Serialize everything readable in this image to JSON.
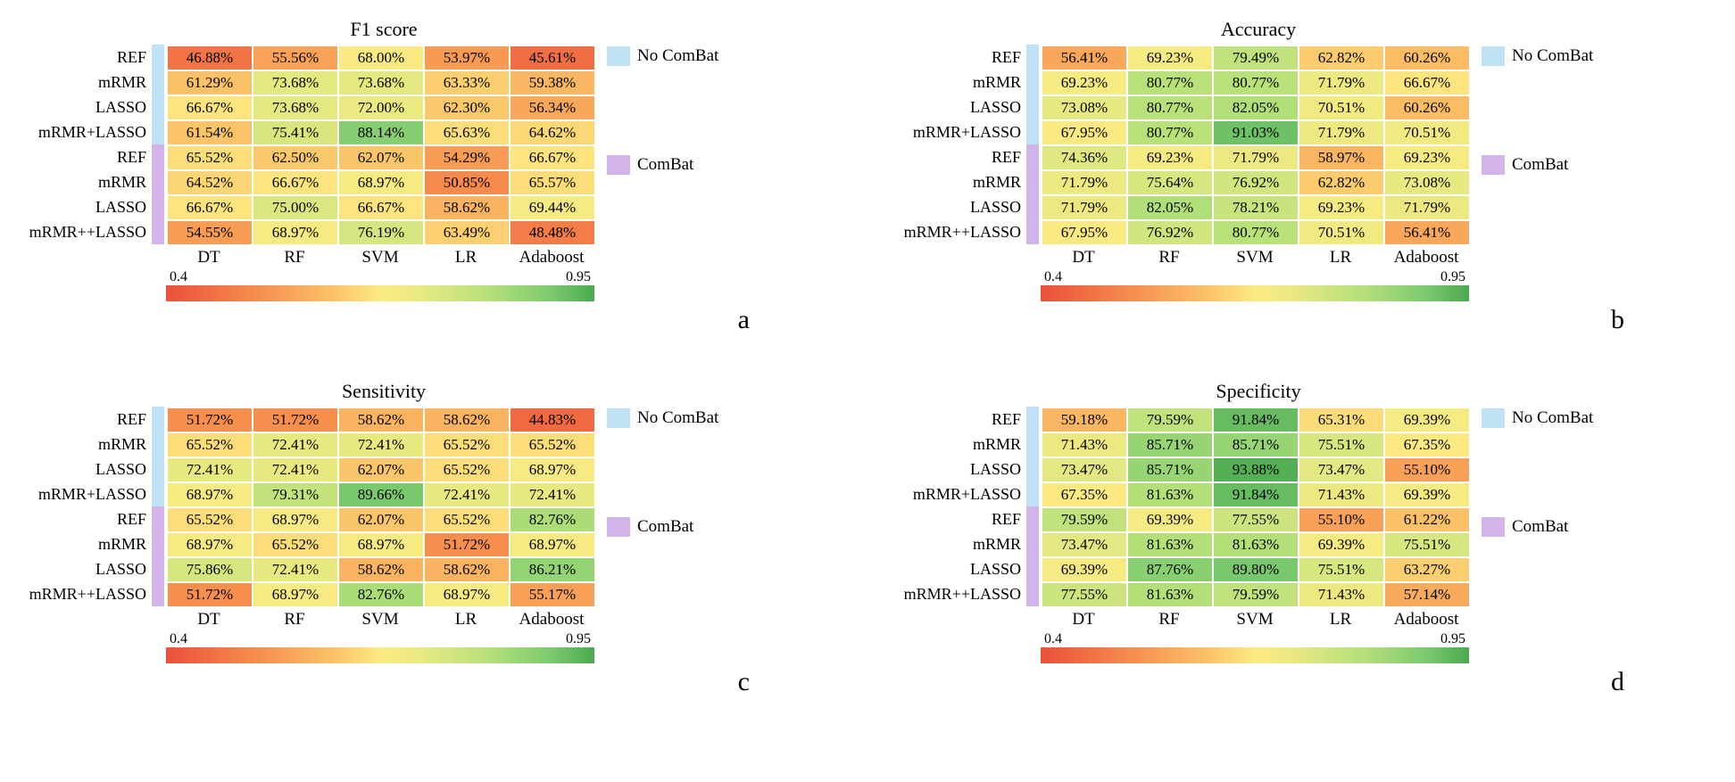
{
  "colorScale": {
    "min": 0.4,
    "max": 0.95
  },
  "colorStops": [
    {
      "t": 0.0,
      "c": "#e9503b"
    },
    {
      "t": 0.2,
      "c": "#f68a4c"
    },
    {
      "t": 0.4,
      "c": "#fbc56a"
    },
    {
      "t": 0.5,
      "c": "#fdea83"
    },
    {
      "t": 0.6,
      "c": "#e7e982"
    },
    {
      "t": 0.75,
      "c": "#b6e07a"
    },
    {
      "t": 0.9,
      "c": "#7cca6f"
    },
    {
      "t": 1.0,
      "c": "#4aa94e"
    }
  ],
  "columns": [
    "DT",
    "RF",
    "SVM",
    "LR",
    "Adaboost"
  ],
  "rows": [
    "REF",
    "mRMR",
    "LASSO",
    "mRMR+LASSO",
    "REF",
    "mRMR",
    "LASSO",
    "mRMR++LASSO"
  ],
  "groupColors": {
    "noComBat": "#bfe3f4",
    "comBat": "#d3b4ea"
  },
  "legend": [
    {
      "label": "No ComBat",
      "key": "noComBat"
    },
    {
      "label": "ComBat",
      "key": "comBat"
    }
  ],
  "cbarLabels": {
    "min": "0.4",
    "max": "0.95"
  },
  "cell_fontsize": 17,
  "label_fontsize": 19,
  "title_fontsize": 22,
  "letter_fontsize": 30,
  "background_color": "#ffffff",
  "cell_border_color": "#ffffff",
  "panels": [
    {
      "id": "a",
      "title": "F1 score",
      "letter": "a",
      "data": [
        [
          46.88,
          55.56,
          68.0,
          53.97,
          45.61
        ],
        [
          61.29,
          73.68,
          73.68,
          63.33,
          59.38
        ],
        [
          66.67,
          73.68,
          72.0,
          62.3,
          56.34
        ],
        [
          61.54,
          75.41,
          88.14,
          65.63,
          64.62
        ],
        [
          65.52,
          62.5,
          62.07,
          54.29,
          66.67
        ],
        [
          64.52,
          66.67,
          68.97,
          50.85,
          65.57
        ],
        [
          66.67,
          75.0,
          66.67,
          58.62,
          69.44
        ],
        [
          54.55,
          68.97,
          76.19,
          63.49,
          48.48
        ]
      ]
    },
    {
      "id": "b",
      "title": "Accuracy",
      "letter": "b",
      "data": [
        [
          56.41,
          69.23,
          79.49,
          62.82,
          60.26
        ],
        [
          69.23,
          80.77,
          80.77,
          71.79,
          66.67
        ],
        [
          73.08,
          80.77,
          82.05,
          70.51,
          60.26
        ],
        [
          67.95,
          80.77,
          91.03,
          71.79,
          70.51
        ],
        [
          74.36,
          69.23,
          71.79,
          58.97,
          69.23
        ],
        [
          71.79,
          75.64,
          76.92,
          62.82,
          73.08
        ],
        [
          71.79,
          82.05,
          78.21,
          69.23,
          71.79
        ],
        [
          67.95,
          76.92,
          80.77,
          70.51,
          56.41
        ]
      ]
    },
    {
      "id": "c",
      "title": "Sensitivity",
      "letter": "c",
      "data": [
        [
          51.72,
          51.72,
          58.62,
          58.62,
          44.83
        ],
        [
          65.52,
          72.41,
          72.41,
          65.52,
          65.52
        ],
        [
          72.41,
          72.41,
          62.07,
          65.52,
          68.97
        ],
        [
          68.97,
          79.31,
          89.66,
          72.41,
          72.41
        ],
        [
          65.52,
          68.97,
          62.07,
          65.52,
          82.76
        ],
        [
          68.97,
          65.52,
          68.97,
          51.72,
          68.97
        ],
        [
          75.86,
          72.41,
          58.62,
          58.62,
          86.21
        ],
        [
          51.72,
          68.97,
          82.76,
          68.97,
          55.17
        ]
      ]
    },
    {
      "id": "d",
      "title": "Specificity",
      "letter": "d",
      "data": [
        [
          59.18,
          79.59,
          91.84,
          65.31,
          69.39
        ],
        [
          71.43,
          85.71,
          85.71,
          75.51,
          67.35
        ],
        [
          73.47,
          85.71,
          93.88,
          73.47,
          55.1
        ],
        [
          67.35,
          81.63,
          91.84,
          71.43,
          69.39
        ],
        [
          79.59,
          69.39,
          77.55,
          55.1,
          61.22
        ],
        [
          73.47,
          81.63,
          81.63,
          69.39,
          75.51
        ],
        [
          69.39,
          87.76,
          89.8,
          75.51,
          63.27
        ],
        [
          77.55,
          81.63,
          79.59,
          71.43,
          57.14
        ]
      ]
    }
  ]
}
